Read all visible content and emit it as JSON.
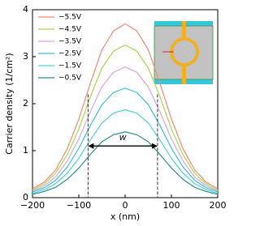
{
  "chart_data": {
    "type": "line",
    "x": [
      -200,
      -175,
      -150,
      -125,
      -100,
      -75,
      -50,
      -25,
      0,
      25,
      50,
      75,
      100,
      125,
      150,
      175,
      200
    ],
    "series": [
      {
        "name": "−5.5V",
        "color": "#f08a78",
        "values": [
          0.19,
          0.33,
          0.59,
          1.04,
          1.67,
          2.44,
          3.15,
          3.55,
          3.7,
          3.55,
          3.15,
          2.44,
          1.67,
          1.04,
          0.59,
          0.33,
          0.19
        ]
      },
      {
        "name": "−4.5V",
        "color": "#a8d84c",
        "values": [
          0.16,
          0.29,
          0.52,
          0.91,
          1.46,
          2.15,
          2.76,
          3.12,
          3.25,
          3.12,
          2.76,
          2.15,
          1.46,
          0.91,
          0.52,
          0.29,
          0.16
        ]
      },
      {
        "name": "−3.5V",
        "color": "#d9a6e3",
        "values": [
          0.14,
          0.25,
          0.44,
          0.78,
          1.25,
          1.83,
          2.36,
          2.67,
          2.78,
          2.67,
          2.36,
          1.83,
          1.25,
          0.78,
          0.44,
          0.25,
          0.14
        ]
      },
      {
        "name": "−2.5V",
        "color": "#3fbfd6",
        "values": [
          0.12,
          0.21,
          0.37,
          0.65,
          1.05,
          1.54,
          1.98,
          2.24,
          2.33,
          2.24,
          1.98,
          1.54,
          1.05,
          0.65,
          0.37,
          0.21,
          0.12
        ]
      },
      {
        "name": "−1.5V",
        "color": "#55cfd0",
        "values": [
          0.09,
          0.17,
          0.3,
          0.52,
          0.84,
          1.23,
          1.59,
          1.8,
          1.87,
          1.8,
          1.59,
          1.23,
          0.84,
          0.52,
          0.3,
          0.17,
          0.09
        ]
      },
      {
        "name": "−0.5V",
        "color": "#2f8f88",
        "values": [
          0.07,
          0.13,
          0.22,
          0.39,
          0.63,
          0.92,
          1.19,
          1.34,
          1.4,
          1.34,
          1.19,
          0.92,
          0.63,
          0.39,
          0.22,
          0.13,
          0.07
        ]
      }
    ],
    "xlabel": "x (nm)",
    "ylabel": "Carrier density (1/cm²)",
    "xlim": [
      -200,
      200
    ],
    "ylim": [
      0,
      4
    ],
    "xticks": [
      {
        "value": -200,
        "label": "−200"
      },
      {
        "value": -100,
        "label": "−100"
      },
      0,
      100,
      200
    ],
    "yticks": [
      0,
      1,
      2,
      3,
      4
    ],
    "width_marker": {
      "label": "w",
      "x": [
        -80,
        70
      ],
      "y": 1.1,
      "top": 2.2
    }
  }
}
